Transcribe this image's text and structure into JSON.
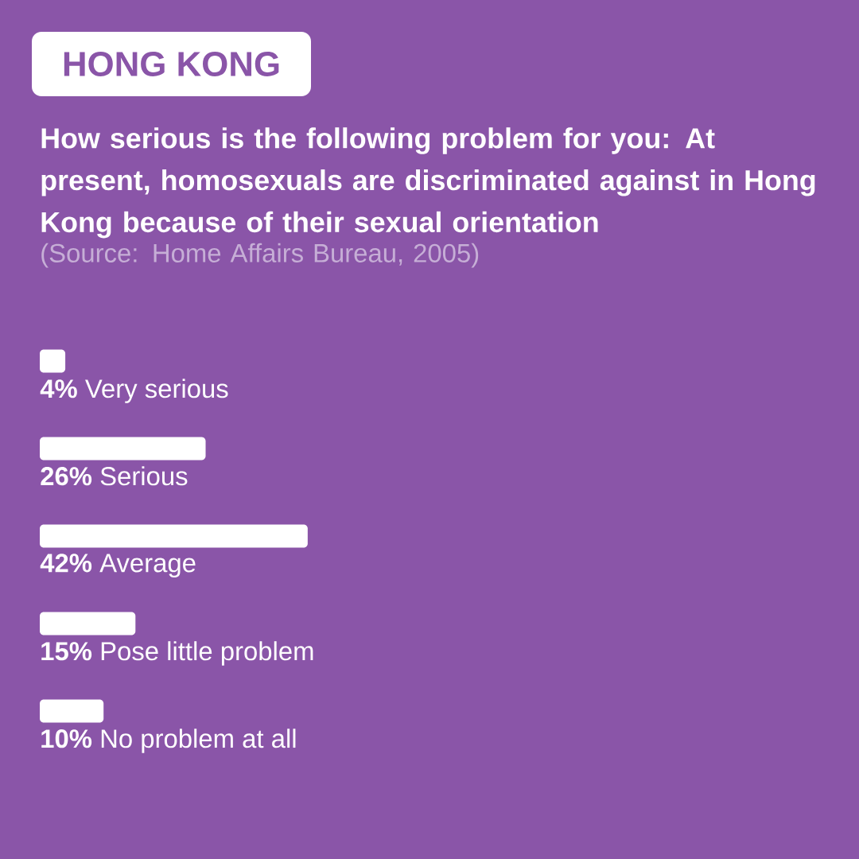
{
  "chart_data": {
    "type": "bar",
    "orientation": "horizontal",
    "subtitle": "HONG KONG",
    "title": "How serious is the following problem for you: At present, homosexuals are discriminated against in Hong Kong because of their sexual orientation",
    "annotations": [
      "(Source: Home Affairs Bureau, 2005)"
    ],
    "categories": [
      "Very serious",
      "Serious",
      "Average",
      "Pose little problem",
      "No problem at all"
    ],
    "values": [
      4,
      26,
      42,
      15,
      10
    ],
    "value_labels": [
      "4%",
      "26%",
      "42%",
      "15%",
      "10%"
    ],
    "color": "#ffffff",
    "tick_labels": false
  }
}
